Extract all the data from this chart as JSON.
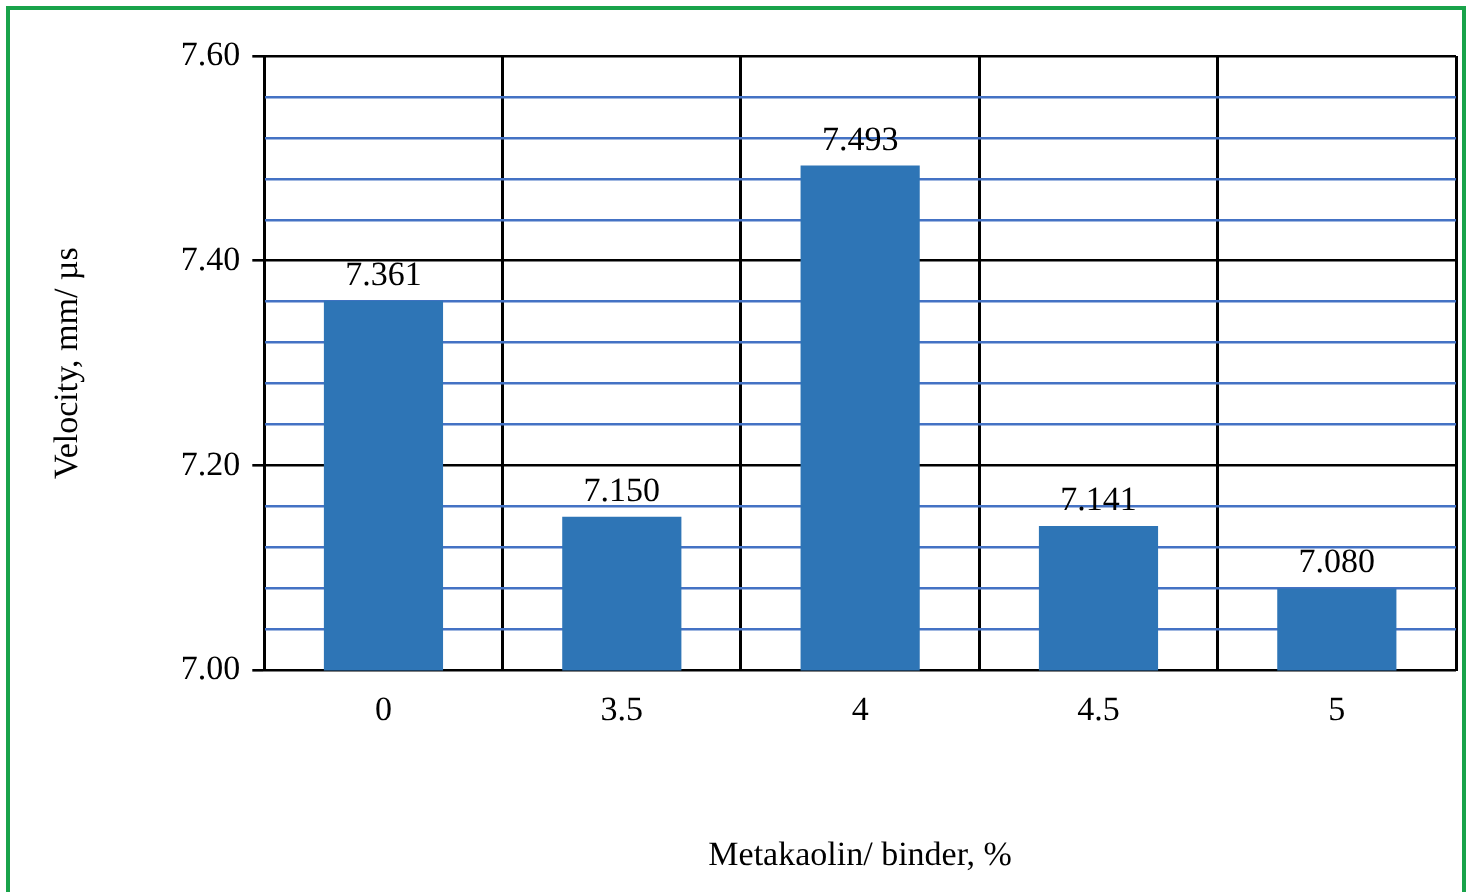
{
  "chart_data": {
    "type": "bar",
    "xlabel": "Metakaolin/ binder, %",
    "ylabel": "Velocity, mm/ µs",
    "categories": [
      "0",
      "3.5",
      "4",
      "4.5",
      "5"
    ],
    "values": [
      7.361,
      7.15,
      7.493,
      7.141,
      7.08
    ],
    "value_labels": [
      "7.361",
      "7.150",
      "7.493",
      "7.141",
      "7.080"
    ],
    "color": "#2e75b6",
    "ylim": [
      7.0,
      7.6
    ],
    "yticks": [
      {
        "value": 7.0,
        "label": "7.00"
      },
      {
        "value": 7.04,
        "label": null
      },
      {
        "value": 7.08,
        "label": null
      },
      {
        "value": 7.12,
        "label": null
      },
      {
        "value": 7.16,
        "label": null
      },
      {
        "value": 7.2,
        "label": "7.20"
      },
      {
        "value": 7.24,
        "label": null
      },
      {
        "value": 7.28,
        "label": null
      },
      {
        "value": 7.32,
        "label": null
      },
      {
        "value": 7.36,
        "label": null
      },
      {
        "value": 7.4,
        "label": "7.40"
      },
      {
        "value": 7.44,
        "label": null
      },
      {
        "value": 7.48,
        "label": null
      },
      {
        "value": 7.52,
        "label": null
      },
      {
        "value": 7.56,
        "label": null
      },
      {
        "value": 7.6,
        "label": "7.60"
      }
    ],
    "grid": true,
    "legend": false
  }
}
